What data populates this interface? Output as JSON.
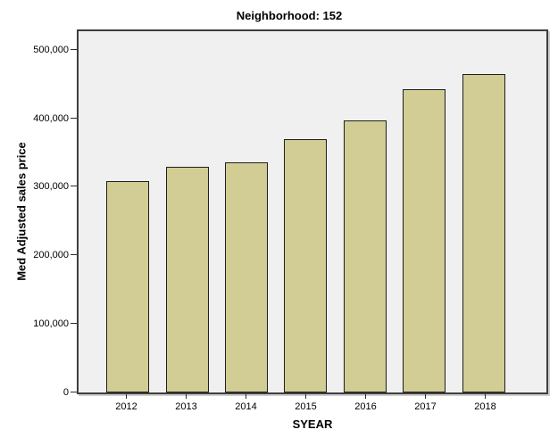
{
  "title": "Neighborhood: 152",
  "colors": {
    "bar_fill": "#d1cd94",
    "bar_border": "#1f1f1f",
    "plot_background": "#f0f0f0",
    "frame_border": "#3e3e3e",
    "page_background": "#ffffff"
  },
  "chart_data": {
    "type": "bar",
    "title": "Neighborhood: 152",
    "xlabel": "SYEAR",
    "ylabel": "Med Adjusted sales price",
    "categories": [
      "2012",
      "2013",
      "2014",
      "2015",
      "2016",
      "2017",
      "2018"
    ],
    "values": [
      308000,
      329000,
      336000,
      369000,
      397000,
      443000,
      464000
    ],
    "ylim": [
      0,
      527000
    ],
    "yticks": [
      {
        "value": 0,
        "label": "0"
      },
      {
        "value": 100000,
        "label": "100,000"
      },
      {
        "value": 200000,
        "label": "200,000"
      },
      {
        "value": 300000,
        "label": "300,000"
      },
      {
        "value": 400000,
        "label": "400,000"
      },
      {
        "value": 500000,
        "label": "500,000"
      }
    ],
    "grid": false,
    "legend": "none",
    "series_name": "Med Adjusted sales price"
  }
}
